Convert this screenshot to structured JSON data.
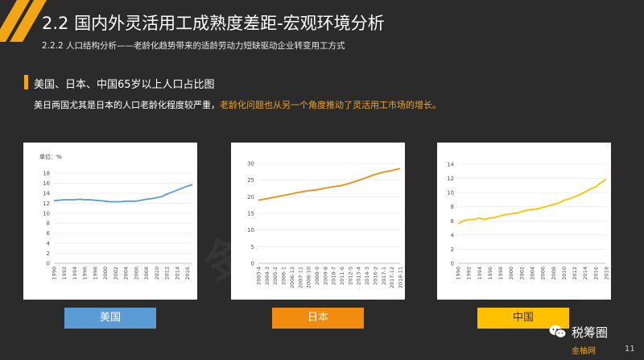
{
  "header": {
    "title": "2.2 国内外灵活用工成熟度差距-宏观环境分析",
    "subtitle": "2.2.2 人口结构分析——老龄化趋势带来的适龄劳动力短缺驱动企业转变用工方式"
  },
  "section": {
    "title": "美国、日本、中国65岁以上人口占比图",
    "desc_normal": "美日两国尤其是日本的人口老龄化程度较严重，",
    "desc_highlight": "老龄化问题也从另一个角度推动了灵活用工市场的增长。"
  },
  "colors": {
    "accent": "#f2a516",
    "us": "#5b9bd5",
    "jp": "#f28c0f",
    "cn": "#ffc000",
    "bg": "#2b2b2b"
  },
  "buttons": {
    "us": "美国",
    "jp": "日本",
    "cn": "中国"
  },
  "footer": {
    "wechat": "税筹圈",
    "brand": "金柚网",
    "page": "11"
  },
  "watermark": "金柚网原创",
  "chart_data": [
    {
      "type": "line",
      "unit_label": "单位：%",
      "color": "#5b9bd5",
      "ylim": [
        0,
        18
      ],
      "yticks": [
        0,
        2,
        4,
        6,
        8,
        10,
        12,
        14,
        16,
        18
      ],
      "xticks": [
        "1990",
        "1992",
        "1994",
        "1996",
        "1998",
        "2000",
        "2002",
        "2004",
        "2006",
        "2008",
        "2010",
        "2012",
        "2014",
        "2016"
      ],
      "x": [
        1990,
        1991,
        1992,
        1993,
        1994,
        1995,
        1996,
        1997,
        1998,
        1999,
        2000,
        2001,
        2002,
        2003,
        2004,
        2005,
        2006,
        2007,
        2008,
        2009,
        2010,
        2011,
        2012,
        2013,
        2014,
        2015,
        2016,
        2017
      ],
      "values": [
        12.5,
        12.6,
        12.7,
        12.7,
        12.7,
        12.8,
        12.7,
        12.7,
        12.6,
        12.5,
        12.4,
        12.3,
        12.3,
        12.3,
        12.4,
        12.4,
        12.4,
        12.6,
        12.8,
        12.9,
        13.1,
        13.3,
        13.8,
        14.2,
        14.6,
        15.0,
        15.4,
        15.7
      ]
    },
    {
      "type": "line",
      "color": "#f28c0f",
      "ylim": [
        0,
        30
      ],
      "yticks": [
        0,
        5,
        10,
        15,
        20,
        25,
        30
      ],
      "xticks": [
        "2003-4",
        "2004-3",
        "2005-2",
        "2006-1",
        "2006-12",
        "2007-11",
        "2008-10",
        "2008-9",
        "2009-8",
        "2010-7",
        "2011-6",
        "2012-5",
        "2013-4",
        "2014-3",
        "2016-2",
        "2017-1",
        "2017-12",
        "2018-11"
      ],
      "values": [
        19.0,
        19.4,
        19.9,
        20.4,
        20.9,
        21.4,
        21.8,
        22.1,
        22.6,
        23.0,
        23.4,
        24.1,
        24.9,
        25.8,
        26.7,
        27.4,
        27.9,
        28.5
      ]
    },
    {
      "type": "line",
      "color": "#ffc000",
      "ylim": [
        0,
        14
      ],
      "yticks": [
        0,
        2,
        4,
        6,
        8,
        10,
        12,
        14
      ],
      "xticks": [
        "1990",
        "1992",
        "1994",
        "1996",
        "1998",
        "2000",
        "2002",
        "2004",
        "2006",
        "2008",
        "2010",
        "2012",
        "2014",
        "2016",
        "2018"
      ],
      "x": [
        1990,
        1991,
        1992,
        1993,
        1994,
        1995,
        1996,
        1997,
        1998,
        1999,
        2000,
        2001,
        2002,
        2003,
        2004,
        2005,
        2006,
        2007,
        2008,
        2009,
        2010,
        2011,
        2012,
        2013,
        2014,
        2015,
        2016,
        2017,
        2018
      ],
      "values": [
        5.6,
        6.0,
        6.2,
        6.2,
        6.4,
        6.2,
        6.4,
        6.5,
        6.7,
        6.9,
        7.0,
        7.1,
        7.3,
        7.5,
        7.6,
        7.7,
        7.9,
        8.1,
        8.3,
        8.5,
        8.9,
        9.1,
        9.4,
        9.7,
        10.1,
        10.5,
        10.8,
        11.4,
        11.9
      ]
    }
  ]
}
